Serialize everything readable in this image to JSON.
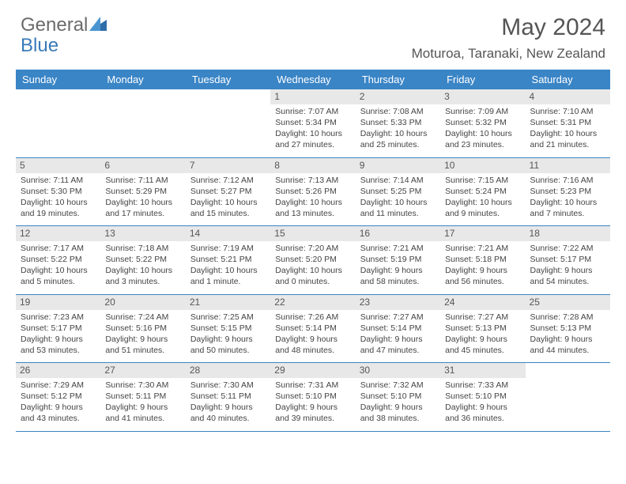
{
  "brand": {
    "part1": "General",
    "part2": "Blue"
  },
  "title": "May 2024",
  "location": "Moturoa, Taranaki, New Zealand",
  "colors": {
    "header_bar": "#3a85c6",
    "daynum_bg": "#e8e8e8",
    "border": "#3a85c6",
    "text": "#444444",
    "title": "#555555"
  },
  "weekdays": [
    "Sunday",
    "Monday",
    "Tuesday",
    "Wednesday",
    "Thursday",
    "Friday",
    "Saturday"
  ],
  "weeks": [
    [
      {
        "day": "",
        "lines": []
      },
      {
        "day": "",
        "lines": []
      },
      {
        "day": "",
        "lines": []
      },
      {
        "day": "1",
        "lines": [
          "Sunrise: 7:07 AM",
          "Sunset: 5:34 PM",
          "Daylight: 10 hours",
          "and 27 minutes."
        ]
      },
      {
        "day": "2",
        "lines": [
          "Sunrise: 7:08 AM",
          "Sunset: 5:33 PM",
          "Daylight: 10 hours",
          "and 25 minutes."
        ]
      },
      {
        "day": "3",
        "lines": [
          "Sunrise: 7:09 AM",
          "Sunset: 5:32 PM",
          "Daylight: 10 hours",
          "and 23 minutes."
        ]
      },
      {
        "day": "4",
        "lines": [
          "Sunrise: 7:10 AM",
          "Sunset: 5:31 PM",
          "Daylight: 10 hours",
          "and 21 minutes."
        ]
      }
    ],
    [
      {
        "day": "5",
        "lines": [
          "Sunrise: 7:11 AM",
          "Sunset: 5:30 PM",
          "Daylight: 10 hours",
          "and 19 minutes."
        ]
      },
      {
        "day": "6",
        "lines": [
          "Sunrise: 7:11 AM",
          "Sunset: 5:29 PM",
          "Daylight: 10 hours",
          "and 17 minutes."
        ]
      },
      {
        "day": "7",
        "lines": [
          "Sunrise: 7:12 AM",
          "Sunset: 5:27 PM",
          "Daylight: 10 hours",
          "and 15 minutes."
        ]
      },
      {
        "day": "8",
        "lines": [
          "Sunrise: 7:13 AM",
          "Sunset: 5:26 PM",
          "Daylight: 10 hours",
          "and 13 minutes."
        ]
      },
      {
        "day": "9",
        "lines": [
          "Sunrise: 7:14 AM",
          "Sunset: 5:25 PM",
          "Daylight: 10 hours",
          "and 11 minutes."
        ]
      },
      {
        "day": "10",
        "lines": [
          "Sunrise: 7:15 AM",
          "Sunset: 5:24 PM",
          "Daylight: 10 hours",
          "and 9 minutes."
        ]
      },
      {
        "day": "11",
        "lines": [
          "Sunrise: 7:16 AM",
          "Sunset: 5:23 PM",
          "Daylight: 10 hours",
          "and 7 minutes."
        ]
      }
    ],
    [
      {
        "day": "12",
        "lines": [
          "Sunrise: 7:17 AM",
          "Sunset: 5:22 PM",
          "Daylight: 10 hours",
          "and 5 minutes."
        ]
      },
      {
        "day": "13",
        "lines": [
          "Sunrise: 7:18 AM",
          "Sunset: 5:22 PM",
          "Daylight: 10 hours",
          "and 3 minutes."
        ]
      },
      {
        "day": "14",
        "lines": [
          "Sunrise: 7:19 AM",
          "Sunset: 5:21 PM",
          "Daylight: 10 hours",
          "and 1 minute."
        ]
      },
      {
        "day": "15",
        "lines": [
          "Sunrise: 7:20 AM",
          "Sunset: 5:20 PM",
          "Daylight: 10 hours",
          "and 0 minutes."
        ]
      },
      {
        "day": "16",
        "lines": [
          "Sunrise: 7:21 AM",
          "Sunset: 5:19 PM",
          "Daylight: 9 hours",
          "and 58 minutes."
        ]
      },
      {
        "day": "17",
        "lines": [
          "Sunrise: 7:21 AM",
          "Sunset: 5:18 PM",
          "Daylight: 9 hours",
          "and 56 minutes."
        ]
      },
      {
        "day": "18",
        "lines": [
          "Sunrise: 7:22 AM",
          "Sunset: 5:17 PM",
          "Daylight: 9 hours",
          "and 54 minutes."
        ]
      }
    ],
    [
      {
        "day": "19",
        "lines": [
          "Sunrise: 7:23 AM",
          "Sunset: 5:17 PM",
          "Daylight: 9 hours",
          "and 53 minutes."
        ]
      },
      {
        "day": "20",
        "lines": [
          "Sunrise: 7:24 AM",
          "Sunset: 5:16 PM",
          "Daylight: 9 hours",
          "and 51 minutes."
        ]
      },
      {
        "day": "21",
        "lines": [
          "Sunrise: 7:25 AM",
          "Sunset: 5:15 PM",
          "Daylight: 9 hours",
          "and 50 minutes."
        ]
      },
      {
        "day": "22",
        "lines": [
          "Sunrise: 7:26 AM",
          "Sunset: 5:14 PM",
          "Daylight: 9 hours",
          "and 48 minutes."
        ]
      },
      {
        "day": "23",
        "lines": [
          "Sunrise: 7:27 AM",
          "Sunset: 5:14 PM",
          "Daylight: 9 hours",
          "and 47 minutes."
        ]
      },
      {
        "day": "24",
        "lines": [
          "Sunrise: 7:27 AM",
          "Sunset: 5:13 PM",
          "Daylight: 9 hours",
          "and 45 minutes."
        ]
      },
      {
        "day": "25",
        "lines": [
          "Sunrise: 7:28 AM",
          "Sunset: 5:13 PM",
          "Daylight: 9 hours",
          "and 44 minutes."
        ]
      }
    ],
    [
      {
        "day": "26",
        "lines": [
          "Sunrise: 7:29 AM",
          "Sunset: 5:12 PM",
          "Daylight: 9 hours",
          "and 43 minutes."
        ]
      },
      {
        "day": "27",
        "lines": [
          "Sunrise: 7:30 AM",
          "Sunset: 5:11 PM",
          "Daylight: 9 hours",
          "and 41 minutes."
        ]
      },
      {
        "day": "28",
        "lines": [
          "Sunrise: 7:30 AM",
          "Sunset: 5:11 PM",
          "Daylight: 9 hours",
          "and 40 minutes."
        ]
      },
      {
        "day": "29",
        "lines": [
          "Sunrise: 7:31 AM",
          "Sunset: 5:10 PM",
          "Daylight: 9 hours",
          "and 39 minutes."
        ]
      },
      {
        "day": "30",
        "lines": [
          "Sunrise: 7:32 AM",
          "Sunset: 5:10 PM",
          "Daylight: 9 hours",
          "and 38 minutes."
        ]
      },
      {
        "day": "31",
        "lines": [
          "Sunrise: 7:33 AM",
          "Sunset: 5:10 PM",
          "Daylight: 9 hours",
          "and 36 minutes."
        ]
      },
      {
        "day": "",
        "lines": []
      }
    ]
  ]
}
